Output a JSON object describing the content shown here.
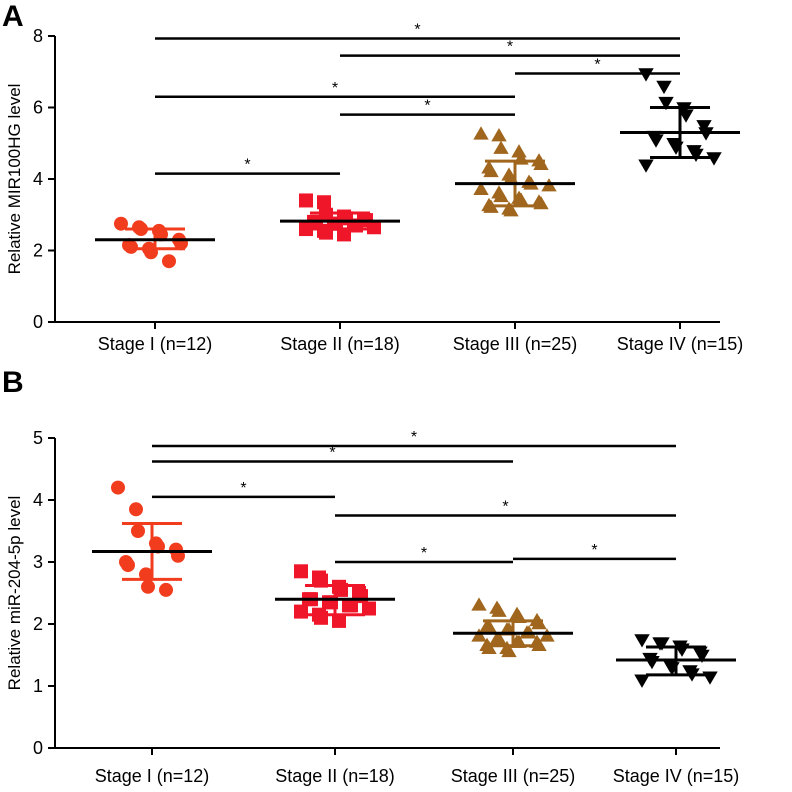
{
  "chart_data": [
    {
      "panel": "A",
      "type": "scatter",
      "ylabel": "Relative MIR100HG level",
      "ylim": [
        0,
        8
      ],
      "yticks": [
        0,
        2,
        4,
        6,
        8
      ],
      "categories": [
        "Stage I (n=12)",
        "Stage II (n=18)",
        "Stage III (n=25)",
        "Stage IV (n=15)"
      ],
      "series": [
        {
          "name": "Stage I",
          "marker": "circle",
          "color": "#f23c1e",
          "mean": 2.3,
          "sd_low": 2.05,
          "sd_high": 2.6,
          "values": [
            2.75,
            2.65,
            2.6,
            2.55,
            2.45,
            2.3,
            2.2,
            2.15,
            2.1,
            2.05,
            1.95,
            1.7
          ]
        },
        {
          "name": "Stage II",
          "marker": "square",
          "color": "#f0162a",
          "mean": 2.82,
          "sd_low": 2.6,
          "sd_high": 3.05,
          "values": [
            3.4,
            3.35,
            3.0,
            2.95,
            2.9,
            2.85,
            2.85,
            2.8,
            2.8,
            2.75,
            2.75,
            2.7,
            2.7,
            2.65,
            2.6,
            2.55,
            2.5,
            2.45
          ]
        },
        {
          "name": "Stage III",
          "marker": "triangle-up",
          "color": "#a0661e",
          "mean": 3.87,
          "sd_low": 3.25,
          "sd_high": 4.5,
          "values": [
            5.25,
            5.2,
            4.85,
            4.75,
            4.55,
            4.5,
            4.4,
            4.3,
            4.2,
            4.1,
            4.0,
            3.9,
            3.85,
            3.8,
            3.7,
            3.6,
            3.5,
            3.45,
            3.4,
            3.35,
            3.3,
            3.25,
            3.2,
            3.15,
            3.1
          ]
        },
        {
          "name": "Stage IV",
          "marker": "triangle-down",
          "color": "#000000",
          "mean": 5.3,
          "sd_low": 4.6,
          "sd_high": 6.0,
          "values": [
            6.95,
            6.6,
            6.15,
            6.0,
            5.8,
            5.5,
            5.3,
            5.2,
            5.1,
            5.0,
            4.9,
            4.8,
            4.7,
            4.6,
            4.4
          ]
        }
      ],
      "significance": [
        {
          "from": 0,
          "to": 3,
          "y": 7.93,
          "label": "*"
        },
        {
          "from": 1,
          "to": 3,
          "y": 7.45,
          "label": "*"
        },
        {
          "from": 2,
          "to": 3,
          "y": 6.95,
          "label": "*"
        },
        {
          "from": 0,
          "to": 2,
          "y": 6.3,
          "label": "*"
        },
        {
          "from": 1,
          "to": 2,
          "y": 5.8,
          "label": "*"
        },
        {
          "from": 0,
          "to": 1,
          "y": 4.15,
          "label": "*"
        }
      ]
    },
    {
      "panel": "B",
      "type": "scatter",
      "ylabel": "Relative miR-204-5p level",
      "ylim": [
        0,
        5
      ],
      "yticks": [
        0,
        1,
        2,
        3,
        4,
        5
      ],
      "categories": [
        "Stage I (n=12)",
        "Stage II (n=18)",
        "Stage III (n=25)",
        "Stage IV (n=15)"
      ],
      "series": [
        {
          "name": "Stage I",
          "marker": "circle",
          "color": "#f23c1e",
          "mean": 3.17,
          "sd_low": 2.72,
          "sd_high": 3.62,
          "values": [
            4.2,
            3.85,
            3.5,
            3.3,
            3.25,
            3.2,
            3.1,
            3.0,
            2.95,
            2.8,
            2.6,
            2.55
          ]
        },
        {
          "name": "Stage II",
          "marker": "square",
          "color": "#f0162a",
          "mean": 2.4,
          "sd_low": 2.15,
          "sd_high": 2.62,
          "values": [
            2.85,
            2.75,
            2.7,
            2.6,
            2.55,
            2.5,
            2.45,
            2.4,
            2.4,
            2.35,
            2.35,
            2.3,
            2.3,
            2.25,
            2.2,
            2.15,
            2.1,
            2.05
          ]
        },
        {
          "name": "Stage III",
          "marker": "triangle-up",
          "color": "#a0661e",
          "mean": 1.85,
          "sd_low": 1.65,
          "sd_high": 2.05,
          "values": [
            2.3,
            2.25,
            2.2,
            2.15,
            2.1,
            2.05,
            2.0,
            1.95,
            1.95,
            1.9,
            1.9,
            1.85,
            1.85,
            1.8,
            1.8,
            1.75,
            1.75,
            1.7,
            1.7,
            1.7,
            1.65,
            1.65,
            1.6,
            1.6,
            1.55
          ]
        },
        {
          "name": "Stage IV",
          "marker": "triangle-down",
          "color": "#000000",
          "mean": 1.42,
          "sd_low": 1.18,
          "sd_high": 1.63,
          "values": [
            1.75,
            1.7,
            1.7,
            1.65,
            1.6,
            1.55,
            1.5,
            1.45,
            1.4,
            1.35,
            1.3,
            1.25,
            1.2,
            1.15,
            1.1
          ]
        }
      ],
      "significance": [
        {
          "from": 0,
          "to": 3,
          "y": 4.87,
          "label": "*"
        },
        {
          "from": 0,
          "to": 2,
          "y": 4.62,
          "label": "*"
        },
        {
          "from": 0,
          "to": 1,
          "y": 4.05,
          "label": "*"
        },
        {
          "from": 1,
          "to": 3,
          "y": 3.75,
          "label": "*"
        },
        {
          "from": 1,
          "to": 2,
          "y": 3.0,
          "label": "*"
        },
        {
          "from": 2,
          "to": 3,
          "y": 3.05,
          "label": "*"
        }
      ]
    }
  ]
}
